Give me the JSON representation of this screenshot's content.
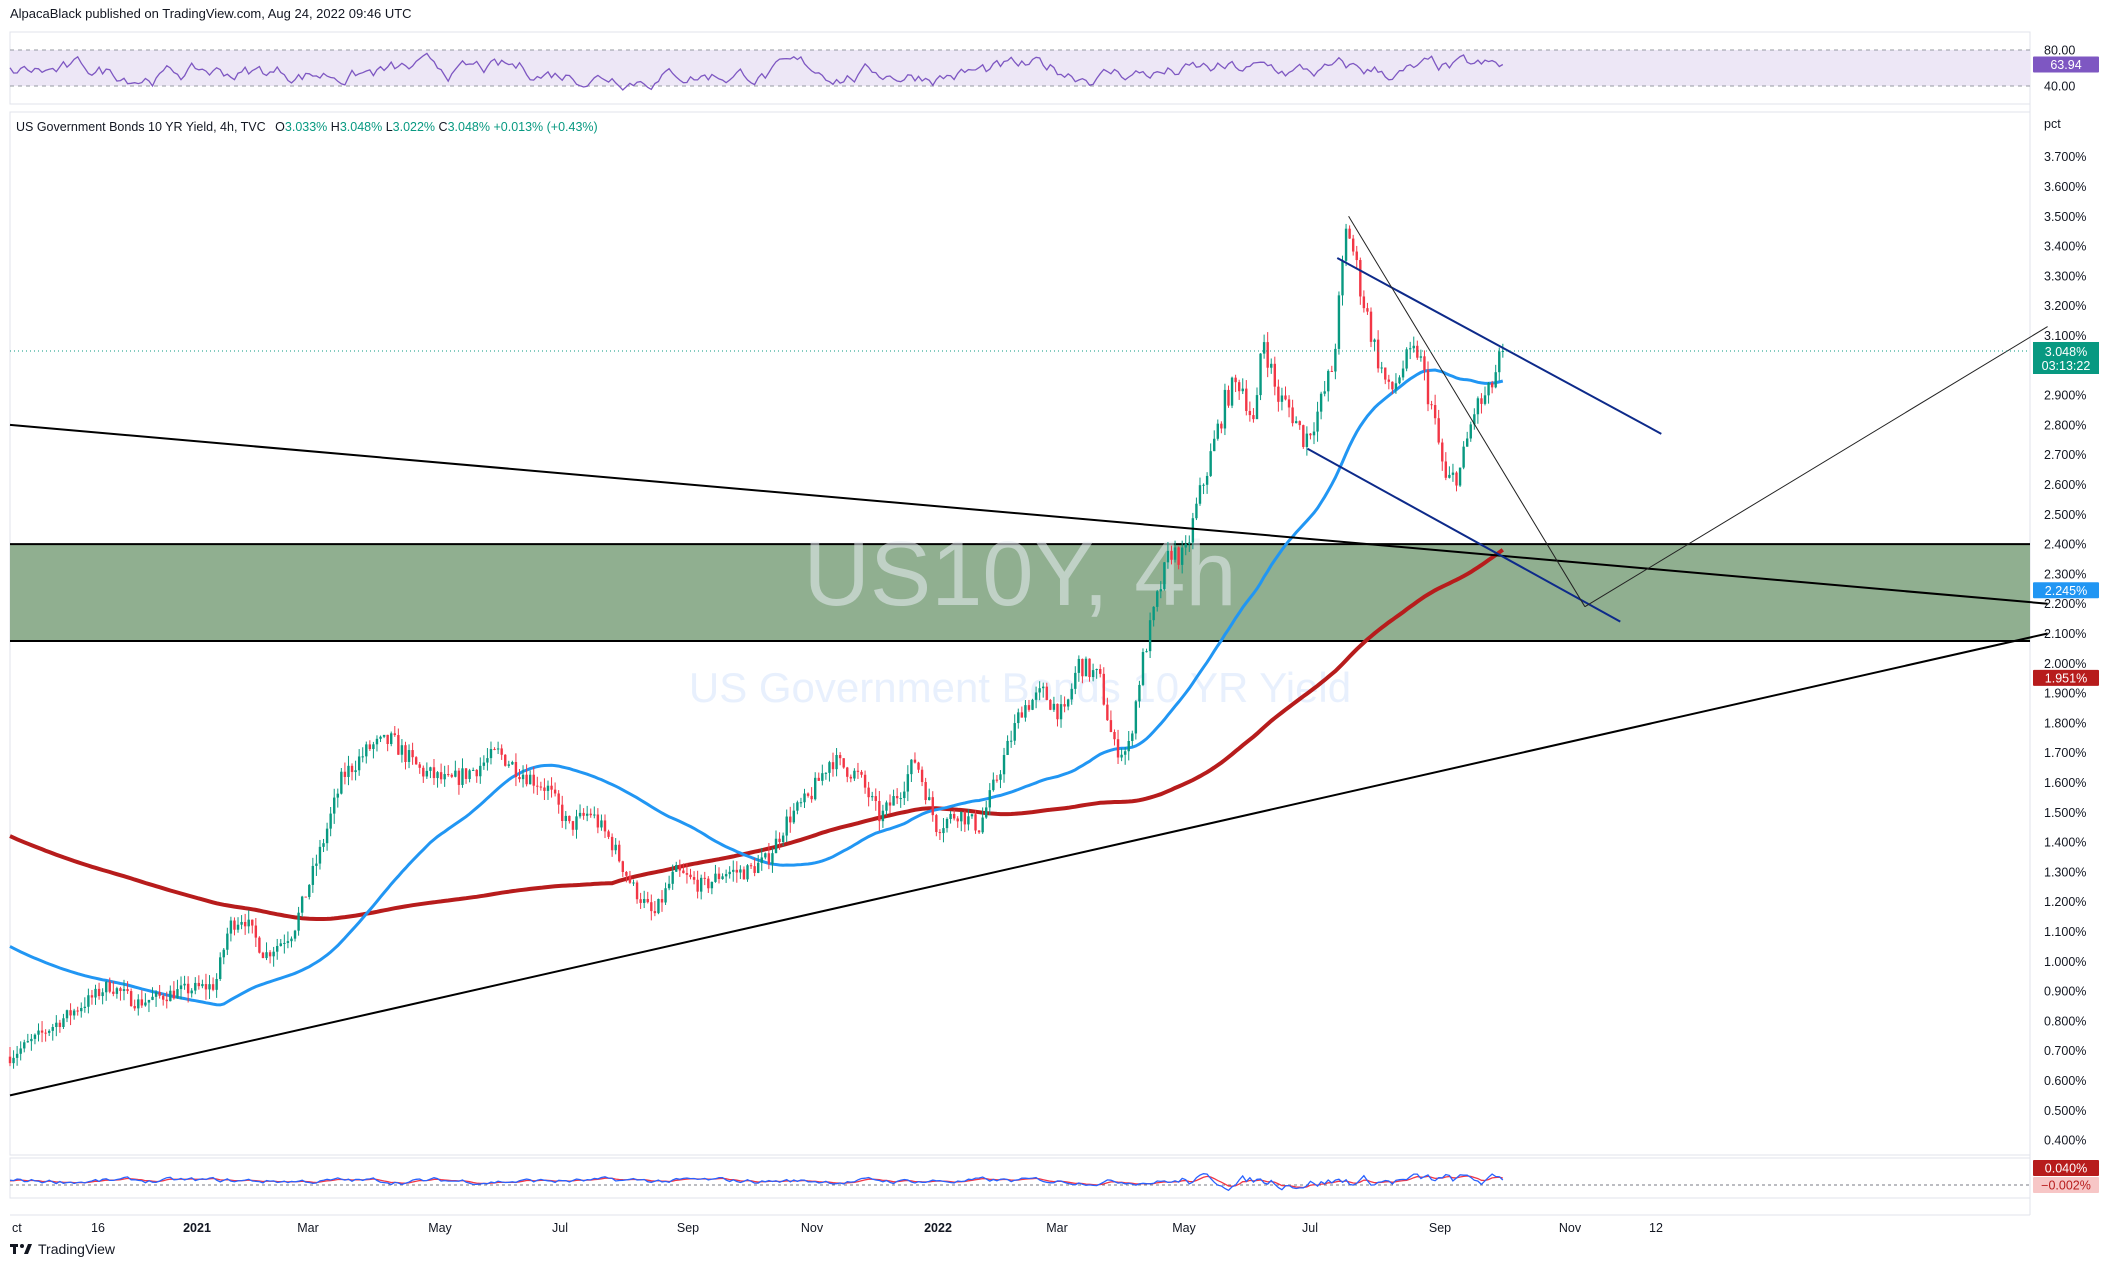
{
  "header": {
    "published": "AlpacaBlack published on TradingView.com, Aug 24, 2022 09:46 UTC"
  },
  "legend": {
    "title": "US Government Bonds 10 YR Yield, 4h, TVC",
    "open_label": "O",
    "open": "3.033%",
    "high_label": "H",
    "high": "3.048%",
    "low_label": "L",
    "low": "3.022%",
    "close_label": "C",
    "close": "3.048%",
    "change": "+0.013% (+0.43%)"
  },
  "watermark": {
    "symbol": "US10Y, 4h",
    "description": "US Government Bonds 10 YR Yield"
  },
  "footer": {
    "brand": "TradingView"
  },
  "colors": {
    "up": "#089981",
    "down": "#f23645",
    "rsi": "#7e57c2",
    "rsi_band": "#ede7f6",
    "ma_fast": "#2196f3",
    "ma_slow": "#b71c1c",
    "zone": "#8aab8a",
    "channel": "#0d2a8a"
  },
  "chart_data": [
    {
      "type": "line",
      "panel": "rsi",
      "yticks": [
        "80.00",
        "40.00"
      ],
      "current_value": "63.94"
    },
    {
      "type": "candlestick",
      "panel": "price",
      "unit_label": "pct",
      "ylim": [
        0.35,
        3.85
      ],
      "yticks": [
        "3.700%",
        "3.600%",
        "3.500%",
        "3.400%",
        "3.300%",
        "3.200%",
        "3.100%",
        "2.900%",
        "2.800%",
        "2.700%",
        "2.600%",
        "2.500%",
        "2.400%",
        "2.300%",
        "2.200%",
        "2.100%",
        "2.000%",
        "1.900%",
        "1.800%",
        "1.700%",
        "1.600%",
        "1.500%",
        "1.400%",
        "1.300%",
        "1.200%",
        "1.100%",
        "1.000%",
        "0.900%",
        "0.800%",
        "0.700%",
        "0.600%",
        "0.500%",
        "0.400%"
      ],
      "xticks": [
        "ct",
        "16",
        "2021",
        "Mar",
        "May",
        "Jul",
        "Sep",
        "Nov",
        "2022",
        "Mar",
        "May",
        "Jul",
        "Sep",
        "Nov",
        "12"
      ],
      "current_price": "3.048%",
      "countdown": "03:13:22",
      "ma_fast_label": "2.245%",
      "ma_slow_label": "1.951%",
      "anchors": [
        [
          0,
          0.68
        ],
        [
          0.05,
          0.85
        ],
        [
          0.07,
          0.92
        ],
        [
          0.09,
          0.86
        ],
        [
          0.12,
          0.9
        ],
        [
          0.145,
          0.92
        ],
        [
          0.155,
          1.12
        ],
        [
          0.165,
          1.15
        ],
        [
          0.18,
          1.02
        ],
        [
          0.2,
          1.1
        ],
        [
          0.22,
          1.38
        ],
        [
          0.235,
          1.62
        ],
        [
          0.255,
          1.72
        ],
        [
          0.27,
          1.74
        ],
        [
          0.29,
          1.64
        ],
        [
          0.31,
          1.6
        ],
        [
          0.33,
          1.65
        ],
        [
          0.345,
          1.7
        ],
        [
          0.36,
          1.64
        ],
        [
          0.38,
          1.58
        ],
        [
          0.395,
          1.45
        ],
        [
          0.41,
          1.5
        ],
        [
          0.425,
          1.4
        ],
        [
          0.44,
          1.25
        ],
        [
          0.455,
          1.15
        ],
        [
          0.47,
          1.3
        ],
        [
          0.49,
          1.25
        ],
        [
          0.505,
          1.3
        ],
        [
          0.52,
          1.3
        ],
        [
          0.535,
          1.34
        ],
        [
          0.55,
          1.48
        ],
        [
          0.565,
          1.55
        ],
        [
          0.58,
          1.68
        ],
        [
          0.6,
          1.62
        ],
        [
          0.615,
          1.48
        ],
        [
          0.63,
          1.58
        ],
        [
          0.64,
          1.68
        ],
        [
          0.655,
          1.45
        ],
        [
          0.67,
          1.5
        ],
        [
          0.685,
          1.45
        ],
        [
          0.7,
          1.65
        ],
        [
          0.715,
          1.85
        ],
        [
          0.73,
          1.9
        ],
        [
          0.745,
          1.82
        ],
        [
          0.755,
          2.0
        ],
        [
          0.77,
          1.95
        ],
        [
          0.78,
          1.72
        ],
        [
          0.79,
          1.7
        ],
        [
          0.8,
          2.0
        ],
        [
          0.81,
          2.2
        ],
        [
          0.82,
          2.38
        ],
        [
          0.83,
          2.35
        ],
        [
          0.84,
          2.55
        ],
        [
          0.85,
          2.72
        ],
        [
          0.86,
          2.9
        ],
        [
          0.87,
          2.95
        ],
        [
          0.88,
          2.78
        ],
        [
          0.885,
          3.12
        ],
        [
          0.895,
          2.9
        ],
        [
          0.905,
          2.85
        ],
        [
          0.915,
          2.75
        ],
        [
          0.925,
          2.85
        ],
        [
          0.935,
          3.0
        ],
        [
          0.945,
          3.48
        ],
        [
          0.955,
          3.25
        ],
        [
          0.965,
          3.05
        ],
        [
          0.975,
          2.9
        ],
        [
          0.985,
          3.0
        ],
        [
          0.995,
          3.05
        ],
        [
          1.005,
          2.85
        ],
        [
          1.015,
          2.6
        ],
        [
          1.025,
          2.65
        ],
        [
          1.035,
          2.85
        ],
        [
          1.045,
          2.9
        ],
        [
          1.055,
          3.048
        ]
      ]
    },
    {
      "type": "line",
      "panel": "macd",
      "yticks": [
        "0.040%",
        "−0.002%"
      ]
    }
  ]
}
